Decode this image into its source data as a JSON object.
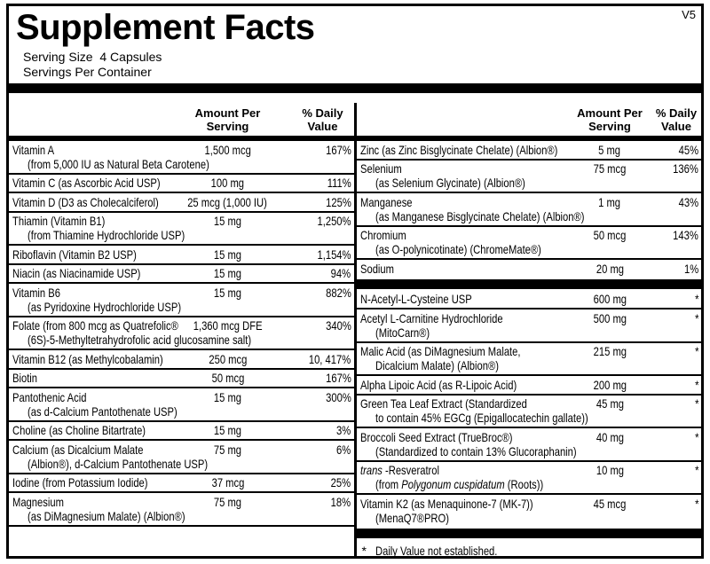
{
  "version": "V5",
  "title": "Supplement Facts",
  "serving_size": "Serving Size  4 Capsules",
  "servings_per_container": "Servings Per Container",
  "headers": {
    "amount_line1": "Amount Per",
    "amount_line2": "Serving",
    "dv_line1": "% Daily",
    "dv_line2": "Value"
  },
  "colors": {
    "ink": "#000000",
    "paper": "#ffffff"
  },
  "columns": {
    "left": {
      "rows": [
        {
          "name": "Vitamin A",
          "sub": "(from 5,000 IU as Natural Beta Carotene)",
          "amount": "1,500 mcg",
          "dv": "167%"
        },
        {
          "name": "Vitamin C (as Ascorbic Acid USP)",
          "amount": "100 mg",
          "dv": "111%"
        },
        {
          "name": "Vitamin D (D3 as Cholecalciferol)",
          "amount": "25 mcg (1,000 IU)",
          "dv": "125%"
        },
        {
          "name": "Thiamin (Vitamin B1)",
          "sub": "(from Thiamine Hydrochloride USP)",
          "amount": "15 mg",
          "dv": "1,250%"
        },
        {
          "name": "Riboflavin (Vitamin B2 USP)",
          "amount": "15 mg",
          "dv": "1,154%"
        },
        {
          "name": "Niacin (as Niacinamide USP)",
          "amount": "15 mg",
          "dv": "94%"
        },
        {
          "name": "Vitamin B6",
          "sub": "(as Pyridoxine Hydrochloride USP)",
          "amount": "15 mg",
          "dv": "882%"
        },
        {
          "name": "Folate (from 800 mcg as Quatrefolic®",
          "sub": "(6S)-5-Methyltetrahydrofolic acid glucosamine salt)",
          "amount": "1,360 mcg DFE",
          "dv": "340%"
        },
        {
          "name": "Vitamin B12 (as Methylcobalamin)",
          "amount": "250 mcg",
          "dv": "10, 417%"
        },
        {
          "name": "Biotin",
          "amount": "50 mcg",
          "dv": "167%"
        },
        {
          "name": "Pantothenic Acid",
          "sub": "(as d-Calcium Pantothenate USP)",
          "amount": "15 mg",
          "dv": "300%"
        },
        {
          "name": "Choline (as Choline Bitartrate)",
          "amount": "15 mg",
          "dv": "3%"
        },
        {
          "name": "Calcium (as Dicalcium Malate",
          "sub": "(Albion®), d-Calcium Pantothenate USP)",
          "amount": "75 mg",
          "dv": "6%"
        },
        {
          "name": "Iodine (from Potassium Iodide)",
          "amount": "37 mcg",
          "dv": "25%"
        },
        {
          "name": "Magnesium",
          "sub": "(as DiMagnesium Malate) (Albion®)",
          "amount": "75 mg",
          "dv": "18%"
        }
      ]
    },
    "right": {
      "rows": [
        {
          "name": "Zinc (as Zinc Bisglycinate Chelate) (Albion®)",
          "amount": "5 mg",
          "dv": "45%"
        },
        {
          "name": "Selenium",
          "sub": "(as Selenium Glycinate) (Albion®)",
          "amount": "75 mcg",
          "dv": "136%"
        },
        {
          "name": "Manganese",
          "sub": "(as Manganese Bisglycinate Chelate) (Albion®)",
          "amount": "1 mg",
          "dv": "43%"
        },
        {
          "name": "Chromium",
          "sub": "(as O-polynicotinate) (ChromeMate®)",
          "amount": "50 mcg",
          "dv": "143%"
        },
        {
          "name": "Sodium",
          "amount": "20 mg",
          "dv": "1%"
        },
        {
          "divider": true
        },
        {
          "name": "N-Acetyl-L-Cysteine USP",
          "amount": "600 mg",
          "dv": "*"
        },
        {
          "name": "Acetyl L-Carnitine Hydrochloride",
          "sub": "(MitoCarn®)",
          "amount": "500 mg",
          "dv": "*"
        },
        {
          "name": "Malic Acid (as DiMagnesium Malate,",
          "sub": "Dicalcium Malate) (Albion®)",
          "amount": "215 mg",
          "dv": "*"
        },
        {
          "name": "Alpha Lipoic Acid (as R-Lipoic Acid)",
          "amount": "200 mg",
          "dv": "*"
        },
        {
          "name": "Green Tea Leaf Extract (Standardized",
          "sub": "to contain 45% EGCg (Epigallocatechin gallate))",
          "amount": "45 mg",
          "dv": "*"
        },
        {
          "name": "Broccoli Seed Extract (TrueBroc®)",
          "sub": "(Standardized to contain 13% Glucoraphanin)",
          "amount": "40 mg",
          "dv": "*"
        },
        {
          "name_parts": [
            {
              "t": "trans ",
              "i": true
            },
            {
              "t": "-Resveratrol"
            }
          ],
          "sub_parts": [
            {
              "t": "(from "
            },
            {
              "t": "Polygonum cuspidatum",
              "i": true
            },
            {
              "t": " (Roots))"
            }
          ],
          "amount": "10 mg",
          "dv": "*"
        },
        {
          "name": "Vitamin K2 (as Menaquinone-7 (MK-7))",
          "sub": "(MenaQ7®PRO)",
          "amount": "45 mcg",
          "dv": "*"
        },
        {
          "divider": true
        }
      ],
      "footnote_marker": "*",
      "footnote_text": "Daily Value not established."
    }
  }
}
